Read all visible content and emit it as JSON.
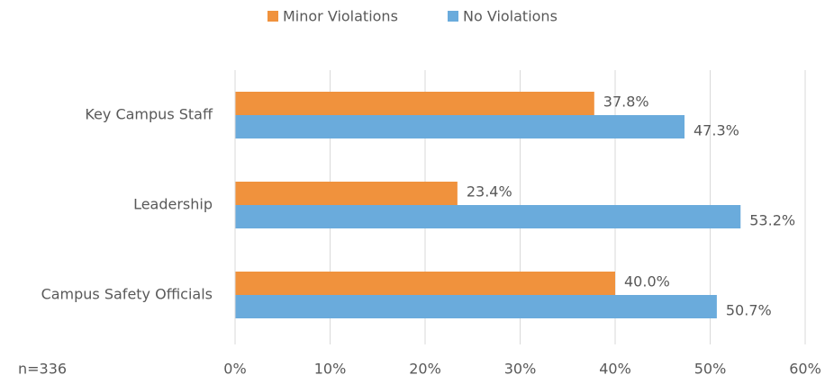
{
  "chart_data": {
    "type": "hbar",
    "categories": [
      "Key Campus Staff",
      "Leadership",
      "Campus Safety Officials"
    ],
    "series": [
      {
        "name": "Minor Violations",
        "color": "#f0923d",
        "values": [
          37.8,
          23.4,
          40.0
        ],
        "value_labels": [
          "37.8%",
          "23.4%",
          "40.0%"
        ]
      },
      {
        "name": "No Violations",
        "color": "#6aabdc",
        "values": [
          47.3,
          53.2,
          50.7
        ],
        "value_labels": [
          "47.3%",
          "53.2%",
          "50.7%"
        ]
      }
    ],
    "xlim": [
      0,
      60
    ],
    "xticks": [
      {
        "value": 0,
        "label": "0%"
      },
      {
        "value": 10,
        "label": "10%"
      },
      {
        "value": 20,
        "label": "20%"
      },
      {
        "value": 30,
        "label": "30%"
      },
      {
        "value": 40,
        "label": "40%"
      },
      {
        "value": 50,
        "label": "50%"
      },
      {
        "value": 60,
        "label": "60%"
      }
    ],
    "grid": true,
    "legend": "top",
    "annotation": "n=336"
  }
}
